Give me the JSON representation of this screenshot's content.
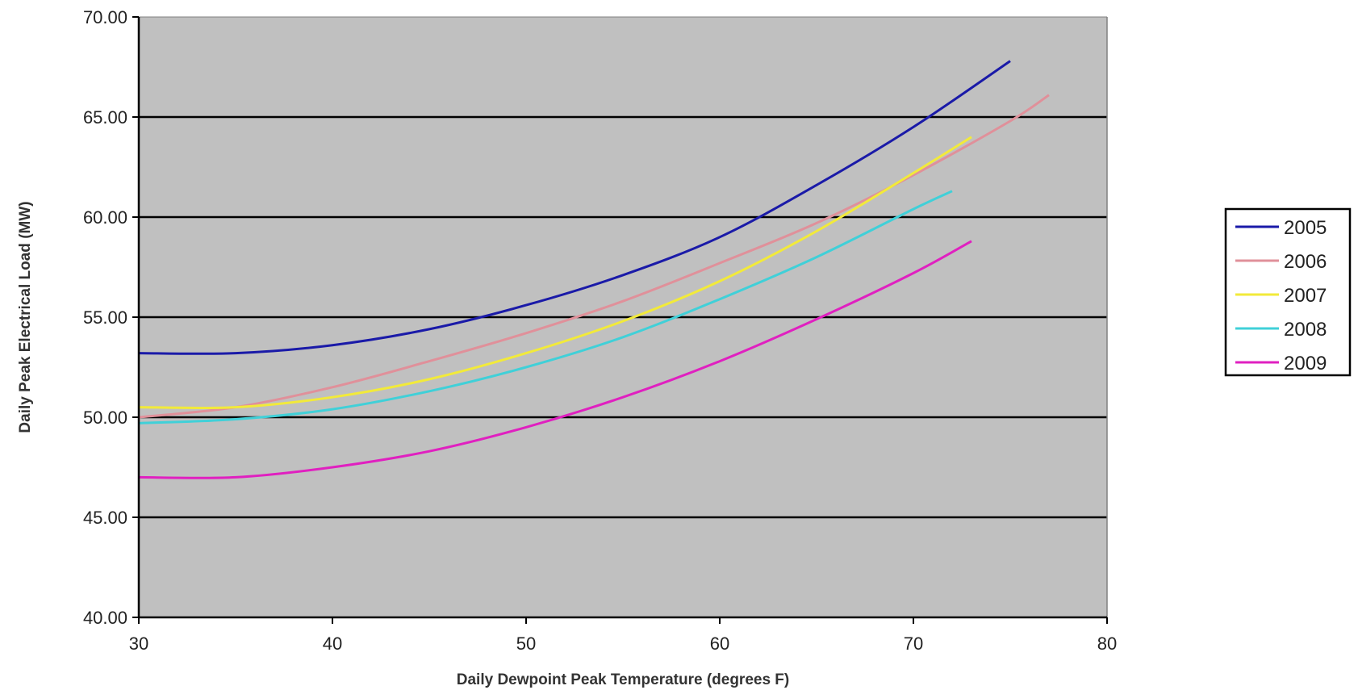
{
  "chart_data": {
    "type": "line",
    "title": "",
    "xlabel": "Daily Dewpoint Peak Temperature (degrees F)",
    "ylabel": "Daily Peak Electrical Load (MW)",
    "xlim": [
      30,
      80
    ],
    "ylim": [
      40,
      70
    ],
    "x_ticks": [
      "30",
      "40",
      "50",
      "60",
      "70",
      "80"
    ],
    "y_ticks": [
      "40.00",
      "45.00",
      "50.00",
      "55.00",
      "60.00",
      "65.00",
      "70.00"
    ],
    "grid": "horizontal",
    "legend_position": "right",
    "plot_background": "#c0c0c0",
    "series": [
      {
        "name": "2005",
        "color": "#1a1aa8",
        "x": [
          30,
          35,
          40,
          45,
          50,
          55,
          60,
          65,
          70,
          75
        ],
        "y": [
          53.2,
          53.2,
          53.6,
          54.4,
          55.6,
          57.1,
          59.0,
          61.6,
          64.5,
          67.8
        ]
      },
      {
        "name": "2006",
        "color": "#e0909a",
        "x": [
          30,
          35,
          40,
          45,
          50,
          55,
          60,
          65,
          70,
          75,
          77
        ],
        "y": [
          50.0,
          50.5,
          51.5,
          52.8,
          54.2,
          55.8,
          57.7,
          59.7,
          62.1,
          64.8,
          66.1
        ]
      },
      {
        "name": "2007",
        "color": "#f2ea3a",
        "x": [
          30,
          35,
          40,
          45,
          50,
          55,
          60,
          65,
          70,
          73
        ],
        "y": [
          50.5,
          50.5,
          51.0,
          51.9,
          53.2,
          54.8,
          56.8,
          59.3,
          62.2,
          64.0
        ]
      },
      {
        "name": "2008",
        "color": "#40d0d8",
        "x": [
          30,
          35,
          40,
          45,
          50,
          55,
          60,
          65,
          70,
          72
        ],
        "y": [
          49.7,
          49.9,
          50.4,
          51.3,
          52.5,
          54.0,
          55.9,
          58.0,
          60.4,
          61.3
        ]
      },
      {
        "name": "2009",
        "color": "#e020c0",
        "x": [
          30,
          35,
          40,
          45,
          50,
          55,
          60,
          65,
          70,
          73
        ],
        "y": [
          47.0,
          47.0,
          47.5,
          48.3,
          49.5,
          51.0,
          52.8,
          54.9,
          57.2,
          58.8
        ]
      }
    ]
  }
}
